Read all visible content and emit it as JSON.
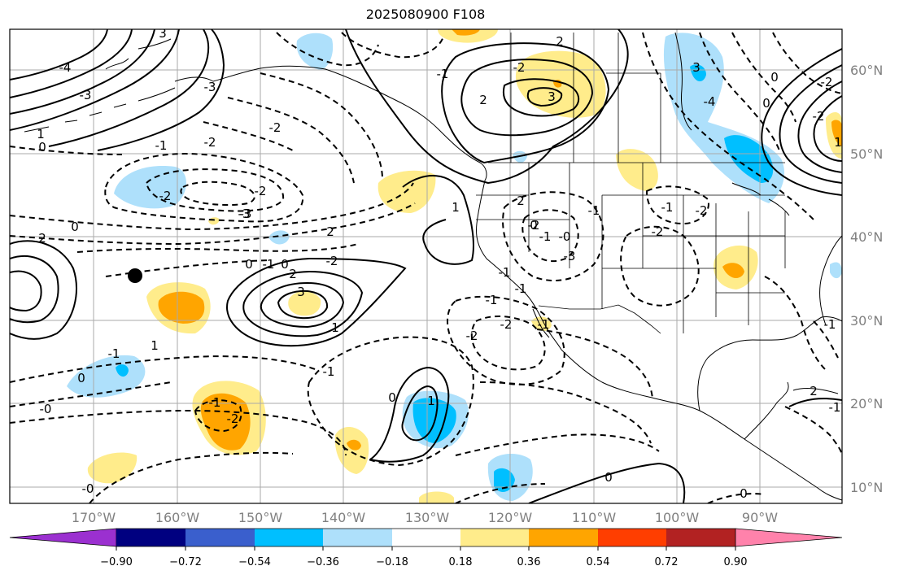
{
  "title": "2025080900 F108",
  "colors": {
    "dark_violet": "#9b30d0",
    "navy": "#000080",
    "royal_blue": "#3a5fcd",
    "deep_sky": "#00bfff",
    "light_blue": "#aee0fb",
    "white": "#ffffff",
    "light_yellow": "#ffec8b",
    "orange": "#ffa500",
    "red_orange": "#ff3e00",
    "firebrick": "#b22222",
    "pink": "#ff82ab"
  },
  "lon_labels": [
    "170°W",
    "160°W",
    "150°W",
    "140°W",
    "130°W",
    "120°W",
    "110°W",
    "100°W",
    "90°W"
  ],
  "lat_labels": [
    "60°N",
    "50°N",
    "40°N",
    "30°N",
    "20°N",
    "10°N"
  ],
  "colorbar": {
    "ticks": [
      "−0.90",
      "−0.72",
      "−0.54",
      "−0.36",
      "−0.18",
      "0.18",
      "0.36",
      "0.54",
      "0.72",
      "0.90"
    ]
  },
  "contour_labels": [
    "3",
    "-4",
    "-3",
    "1",
    "0",
    "-2",
    "-1",
    "0",
    "2",
    "-3",
    "-2",
    "-3",
    "-2",
    "-0",
    "2",
    "-2",
    "0",
    "-1",
    "0",
    "-1",
    "-2",
    "2",
    "3",
    "3",
    "-4",
    "-2",
    "-2",
    "-3",
    "-1",
    "0",
    "1",
    "-2",
    "-2",
    "-1",
    "-1",
    "-2",
    "-1",
    "-0",
    "0",
    "0",
    "1",
    "2",
    "0",
    "-2",
    "0",
    "-2",
    "1",
    "-1",
    "2",
    "-1",
    "2",
    "0",
    "-1",
    "-0",
    "-1",
    "-1",
    "-2",
    "3",
    "-3",
    "-2",
    "1",
    "-1",
    "0",
    "1",
    "-1",
    "-1",
    "2"
  ],
  "marker": "black-dot"
}
